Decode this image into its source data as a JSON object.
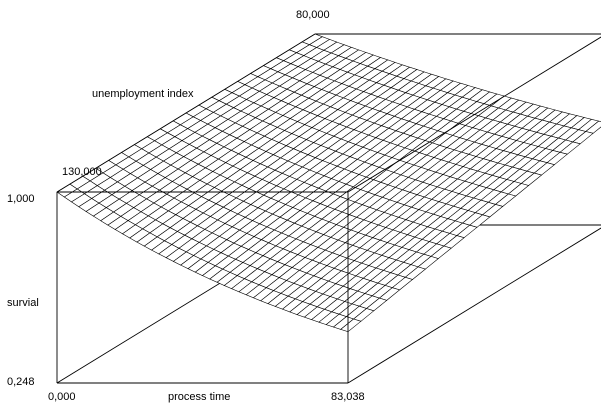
{
  "chart_data": {
    "type": "surface",
    "title": "",
    "xlabel": "process time",
    "ylabel": "survial",
    "zlabel": "unemployment index",
    "x_range": [
      0.0,
      83.038
    ],
    "y_range": [
      0.248,
      1.0
    ],
    "z_range": [
      80.0,
      130.0
    ],
    "x_tick_labels": [
      "0,000",
      "83,038"
    ],
    "y_tick_labels": [
      "0,248",
      "1,000"
    ],
    "z_tick_labels": [
      "130,000",
      "80,000"
    ],
    "grid_size": [
      40,
      20
    ],
    "surface": {
      "function": "exponential decay in process time, nearly constant in unemployment index",
      "value_at_time_start": 1.0,
      "value_at_time_end_high_index": 0.45,
      "value_at_time_end_low_index": 0.65
    },
    "colors": {
      "mesh": "#000000",
      "fill": "#ffffff",
      "frame": "#000000"
    }
  }
}
